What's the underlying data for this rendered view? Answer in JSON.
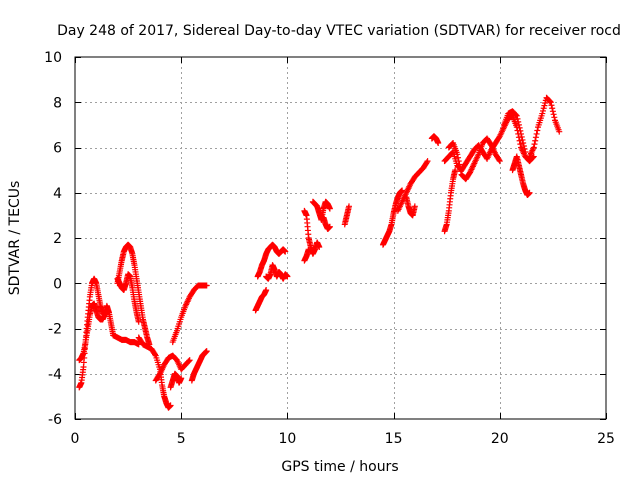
{
  "chart_data": {
    "type": "scatter",
    "title": "Day 248 of 2017, Sidereal Day-to-day VTEC variation (SDTVAR) for receiver rocd",
    "xlabel": "GPS time / hours",
    "ylabel": "SDTVAR / TECUs",
    "xlim": [
      0,
      25
    ],
    "ylim": [
      -6,
      10
    ],
    "xticks": [
      0,
      5,
      10,
      15,
      20,
      25
    ],
    "yticks": [
      -6,
      -4,
      -2,
      0,
      2,
      4,
      6,
      8,
      10
    ],
    "grid": true,
    "marker": "+",
    "marker_color": "#ff0000",
    "series": [
      {
        "name": "rocd",
        "segments": [
          {
            "x": [
              0.2,
              0.3,
              0.4,
              0.5,
              0.6,
              0.7,
              0.8,
              0.9,
              1.0,
              1.1,
              1.2,
              1.3,
              1.4,
              1.5,
              1.6,
              1.7,
              1.8
            ],
            "y": [
              -4.6,
              -4.4,
              -3.7,
              -2.5,
              -1.5,
              -0.6,
              0.0,
              0.2,
              0.0,
              -0.5,
              -1.0,
              -1.3,
              -1.4,
              -1.2,
              -1.3,
              -1.8,
              -2.3
            ]
          },
          {
            "x": [
              0.2,
              0.3,
              0.4,
              0.5,
              0.6,
              0.7,
              0.8,
              0.9,
              1.0,
              1.1,
              1.2,
              1.3,
              1.4,
              1.5,
              1.6
            ],
            "y": [
              -3.4,
              -3.3,
              -3.1,
              -2.6,
              -2.0,
              -1.4,
              -1.0,
              -0.9,
              -1.2,
              -1.5,
              -1.6,
              -1.6,
              -1.4,
              -1.0,
              -1.3
            ]
          },
          {
            "x": [
              1.8,
              2.0,
              2.2,
              2.4,
              2.6,
              2.8,
              3.0
            ],
            "y": [
              -2.3,
              -2.4,
              -2.5,
              -2.5,
              -2.6,
              -2.6,
              -2.7
            ]
          },
          {
            "x": [
              2.0,
              2.1,
              2.2,
              2.3,
              2.4,
              2.5,
              2.6,
              2.7,
              2.8,
              2.9,
              3.0,
              3.1,
              3.2,
              3.3,
              3.4,
              3.5
            ],
            "y": [
              0.0,
              0.5,
              1.0,
              1.4,
              1.6,
              1.7,
              1.6,
              1.3,
              0.8,
              0.2,
              -0.4,
              -1.0,
              -1.6,
              -2.0,
              -2.4,
              -2.7
            ]
          },
          {
            "x": [
              2.0,
              2.1,
              2.2,
              2.3,
              2.4,
              2.5,
              2.6,
              2.7,
              2.8,
              2.9,
              3.0
            ],
            "y": [
              0.2,
              0.0,
              -0.2,
              -0.3,
              0.0,
              0.4,
              0.3,
              -0.2,
              -0.8,
              -1.3,
              -1.7
            ]
          },
          {
            "x": [
              3.0,
              3.2,
              3.4,
              3.6,
              3.8,
              4.0,
              4.1,
              4.2,
              4.3,
              4.4,
              4.5
            ],
            "y": [
              -2.4,
              -2.7,
              -2.8,
              -2.9,
              -3.2,
              -3.8,
              -4.5,
              -5.0,
              -5.3,
              -5.5,
              -5.4
            ]
          },
          {
            "x": [
              3.8,
              4.0,
              4.2,
              4.4,
              4.6,
              4.8,
              5.0,
              5.2,
              5.4
            ],
            "y": [
              -4.3,
              -4.0,
              -3.6,
              -3.3,
              -3.2,
              -3.4,
              -3.8,
              -3.6,
              -3.4
            ]
          },
          {
            "x": [
              4.6,
              4.8,
              5.0,
              5.2,
              5.4,
              5.6,
              5.8,
              6.0,
              6.2
            ],
            "y": [
              -2.6,
              -2.1,
              -1.5,
              -1.0,
              -0.6,
              -0.3,
              -0.1,
              -0.1,
              -0.1
            ]
          },
          {
            "x": [
              4.5,
              4.6,
              4.7,
              4.8,
              4.9,
              5.0
            ],
            "y": [
              -4.6,
              -4.3,
              -4.0,
              -4.1,
              -4.4,
              -4.2
            ]
          },
          {
            "x": [
              5.5,
              5.6,
              5.7,
              5.8,
              5.9,
              6.0,
              6.1,
              6.2
            ],
            "y": [
              -4.3,
              -4.0,
              -3.8,
              -3.6,
              -3.4,
              -3.2,
              -3.1,
              -3.0
            ]
          },
          {
            "x": [
              8.5,
              8.6,
              8.7,
              8.8,
              8.9,
              9.0
            ],
            "y": [
              -1.2,
              -1.0,
              -0.8,
              -0.6,
              -0.5,
              -0.3
            ]
          },
          {
            "x": [
              8.6,
              8.7,
              8.8,
              8.9,
              9.0,
              9.1,
              9.2,
              9.3,
              9.4,
              9.5,
              9.6,
              9.7,
              9.8,
              9.9
            ],
            "y": [
              0.3,
              0.5,
              0.8,
              1.0,
              1.3,
              1.5,
              1.6,
              1.7,
              1.6,
              1.4,
              1.3,
              1.4,
              1.5,
              1.4
            ]
          },
          {
            "x": [
              9.0,
              9.1,
              9.2,
              9.3,
              9.4,
              9.5,
              9.6,
              9.7,
              9.8,
              9.9,
              10.0
            ],
            "y": [
              0.3,
              0.2,
              0.4,
              0.8,
              0.6,
              0.3,
              0.5,
              0.4,
              0.2,
              0.4,
              0.3
            ]
          },
          {
            "x": [
              10.8,
              10.9,
              11.0
            ],
            "y": [
              1.0,
              1.2,
              1.5
            ]
          },
          {
            "x": [
              10.8,
              10.9,
              11.0,
              11.1,
              11.2,
              11.3,
              11.4,
              11.5
            ],
            "y": [
              3.2,
              3.0,
              2.0,
              1.6,
              1.3,
              1.5,
              1.8,
              1.6
            ]
          },
          {
            "x": [
              11.2,
              11.3,
              11.4,
              11.5,
              11.6,
              11.7,
              11.8,
              11.9,
              12.0
            ],
            "y": [
              3.6,
              3.5,
              3.4,
              3.1,
              2.8,
              3.3,
              3.6,
              3.5,
              3.3
            ]
          },
          {
            "x": [
              11.7,
              11.8,
              11.9,
              12.0
            ],
            "y": [
              2.9,
              2.6,
              2.4,
              2.5
            ]
          },
          {
            "x": [
              12.7,
              12.8,
              12.9
            ],
            "y": [
              2.6,
              3.0,
              3.4
            ]
          },
          {
            "x": [
              14.5,
              14.6,
              14.7,
              14.8,
              14.9,
              15.0,
              15.1,
              15.2,
              15.3,
              15.4
            ],
            "y": [
              1.7,
              1.9,
              2.1,
              2.3,
              2.6,
              3.1,
              3.5,
              3.8,
              4.0,
              4.1
            ]
          },
          {
            "x": [
              15.2,
              15.4,
              15.6,
              15.8,
              16.0,
              16.2,
              16.4,
              16.6
            ],
            "y": [
              3.2,
              3.6,
              4.0,
              4.4,
              4.7,
              4.9,
              5.1,
              5.4
            ]
          },
          {
            "x": [
              15.6,
              15.7,
              15.8,
              15.9,
              16.0
            ],
            "y": [
              3.8,
              3.4,
              3.1,
              3.0,
              3.4
            ]
          },
          {
            "x": [
              16.8,
              16.9,
              17.0,
              17.1
            ],
            "y": [
              6.4,
              6.5,
              6.4,
              6.2
            ]
          },
          {
            "x": [
              17.4,
              17.5,
              17.6,
              17.7,
              17.8,
              17.9
            ],
            "y": [
              2.3,
              2.6,
              3.2,
              4.0,
              4.6,
              5.0
            ]
          },
          {
            "x": [
              17.4,
              17.6,
              17.8,
              18.0,
              18.2,
              18.4,
              18.6,
              18.8,
              19.0,
              19.2,
              19.4,
              19.6,
              19.8,
              20.0,
              20.2,
              20.4,
              20.6,
              20.8,
              21.0,
              21.2,
              21.4,
              21.6
            ],
            "y": [
              5.4,
              5.6,
              5.8,
              5.2,
              5.0,
              5.3,
              5.6,
              5.9,
              6.1,
              5.8,
              5.5,
              5.9,
              6.2,
              6.5,
              6.9,
              7.3,
              7.4,
              6.9,
              6.0,
              5.6,
              5.4,
              5.6
            ]
          },
          {
            "x": [
              17.6,
              17.8,
              18.0,
              18.2,
              18.4,
              18.6,
              18.8,
              19.0,
              19.2,
              19.4,
              19.6,
              19.8,
              20.0
            ],
            "y": [
              6.0,
              6.2,
              5.7,
              4.8,
              4.6,
              4.9,
              5.3,
              5.7,
              6.2,
              6.4,
              6.1,
              5.7,
              5.4
            ]
          },
          {
            "x": [
              20.2,
              20.4,
              20.6,
              20.8,
              21.0,
              21.2
            ],
            "y": [
              7.0,
              7.5,
              7.6,
              7.4,
              6.6,
              5.8
            ]
          },
          {
            "x": [
              20.6,
              20.7,
              20.8,
              20.9,
              21.0,
              21.1,
              21.2,
              21.3,
              21.4
            ],
            "y": [
              5.0,
              5.3,
              5.6,
              5.2,
              4.8,
              4.4,
              4.1,
              3.9,
              4.0
            ]
          },
          {
            "x": [
              21.4,
              21.6,
              21.8,
              22.0,
              22.2,
              22.4,
              22.6,
              22.8
            ],
            "y": [
              5.6,
              6.0,
              6.9,
              7.5,
              8.2,
              8.0,
              7.2,
              6.7
            ]
          }
        ]
      }
    ]
  }
}
